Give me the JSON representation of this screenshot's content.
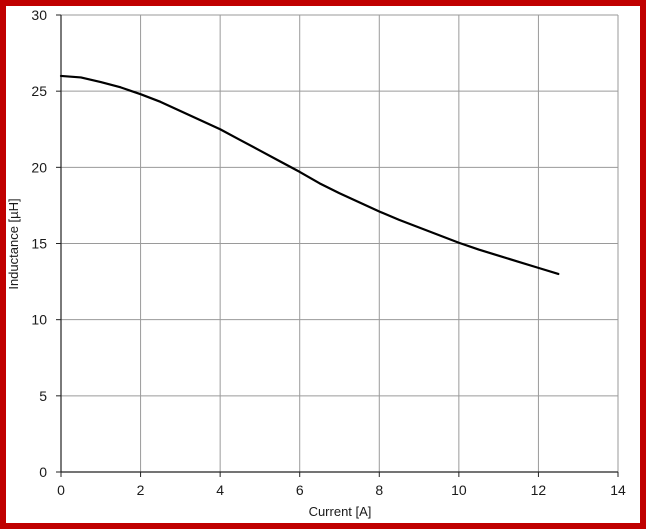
{
  "colors": {
    "border": "#c00000",
    "grid": "#9a9a9a",
    "axis": "#222222",
    "curve": "#000000",
    "background": "#ffffff"
  },
  "chart_data": {
    "type": "line",
    "title": "",
    "xlabel": "Current [A]",
    "ylabel": "Inductance [µH]",
    "xlim": [
      0,
      14
    ],
    "ylim": [
      0,
      30
    ],
    "x_ticks": [
      0,
      2,
      4,
      6,
      8,
      10,
      12,
      14
    ],
    "y_ticks": [
      0,
      5,
      10,
      15,
      20,
      25,
      30
    ],
    "grid": true,
    "legend": "none",
    "series": [
      {
        "x": [
          0,
          0.5,
          1,
          1.5,
          2,
          2.5,
          3,
          3.5,
          4,
          4.5,
          5,
          5.5,
          6,
          6.5,
          7,
          7.5,
          8,
          8.5,
          9,
          9.5,
          10,
          10.5,
          11,
          11.5,
          12,
          12.5
        ],
        "y": [
          26.0,
          25.9,
          25.6,
          25.25,
          24.8,
          24.3,
          23.7,
          23.1,
          22.5,
          21.8,
          21.1,
          20.4,
          19.7,
          18.95,
          18.3,
          17.7,
          17.1,
          16.55,
          16.05,
          15.55,
          15.05,
          14.6,
          14.2,
          13.8,
          13.4,
          13.0
        ]
      }
    ]
  }
}
